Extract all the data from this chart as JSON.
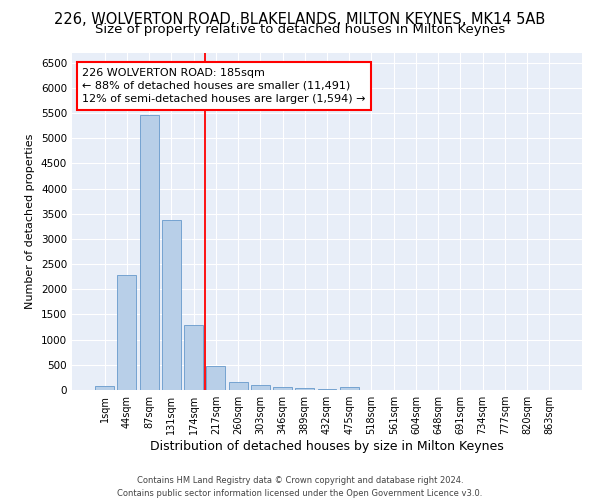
{
  "title": "226, WOLVERTON ROAD, BLAKELANDS, MILTON KEYNES, MK14 5AB",
  "subtitle": "Size of property relative to detached houses in Milton Keynes",
  "xlabel": "Distribution of detached houses by size in Milton Keynes",
  "ylabel": "Number of detached properties",
  "footer_line1": "Contains HM Land Registry data © Crown copyright and database right 2024.",
  "footer_line2": "Contains public sector information licensed under the Open Government Licence v3.0.",
  "bin_labels": [
    "1sqm",
    "44sqm",
    "87sqm",
    "131sqm",
    "174sqm",
    "217sqm",
    "260sqm",
    "303sqm",
    "346sqm",
    "389sqm",
    "432sqm",
    "475sqm",
    "518sqm",
    "561sqm",
    "604sqm",
    "648sqm",
    "691sqm",
    "734sqm",
    "777sqm",
    "820sqm",
    "863sqm"
  ],
  "bar_values": [
    75,
    2280,
    5450,
    3380,
    1300,
    480,
    165,
    90,
    55,
    30,
    15,
    50,
    0,
    0,
    0,
    0,
    0,
    0,
    0,
    0,
    0
  ],
  "bar_color": "#b8cfe8",
  "bar_edgecolor": "#6699cc",
  "vline_x": 4.5,
  "vline_color": "red",
  "annotation_text": "226 WOLVERTON ROAD: 185sqm\n← 88% of detached houses are smaller (11,491)\n12% of semi-detached houses are larger (1,594) →",
  "ylim": [
    0,
    6700
  ],
  "yticks": [
    0,
    500,
    1000,
    1500,
    2000,
    2500,
    3000,
    3500,
    4000,
    4500,
    5000,
    5500,
    6000,
    6500
  ],
  "background_color": "#e8eef8",
  "grid_color": "white",
  "title_fontsize": 10.5,
  "subtitle_fontsize": 9.5,
  "xlabel_fontsize": 9,
  "ylabel_fontsize": 8,
  "tick_fontsize": 7.5,
  "xtick_fontsize": 7,
  "annotation_fontsize": 8,
  "footer_fontsize": 6
}
